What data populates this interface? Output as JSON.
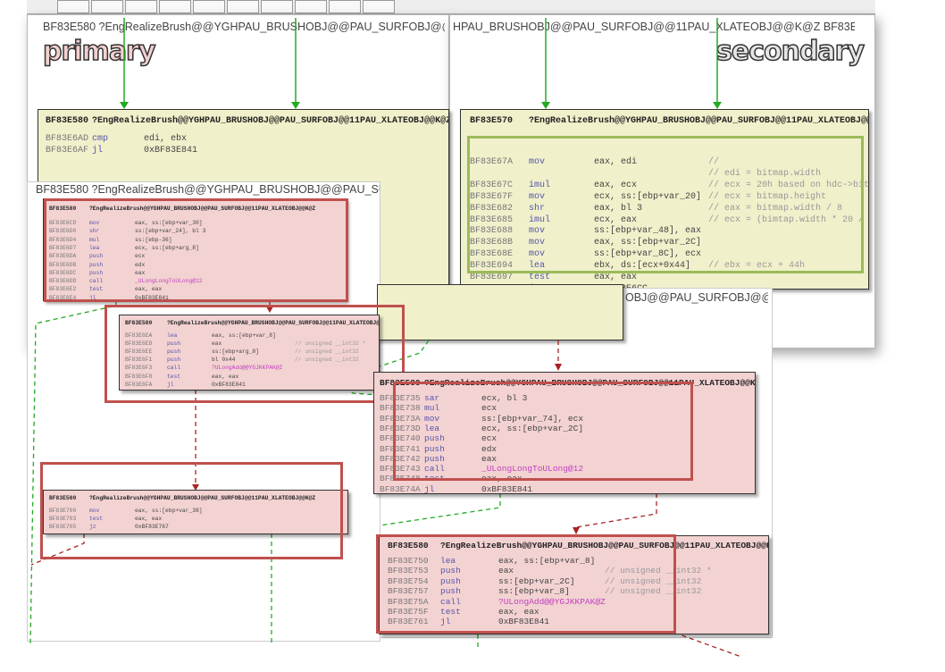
{
  "toolbar": {
    "buttons": 10
  },
  "primary_pane": {
    "header": "BF83E580   ?EngRealizeBrush@@YGHPAU_BRUSHOBJ@@PAU_SURFOBJ@@11PAU_XLATEOBJ@@K@Z",
    "label": "primary"
  },
  "secondary_pane": {
    "header": "HPAU_BRUSHOBJ@@PAU_SURFOBJ@@11PAU_XLATEOBJ@@K@Z   BF83E570",
    "label": "secondary"
  },
  "overlay_pane_header": "OBJ@@PAU_SURFOBJ@@11",
  "overlay_left_header": "BF83E580   ?EngRealizeBrush@@YGHPAU_BRUSHOBJ@@PAU_SURFOBJ@@11",
  "colors": {
    "node_yellow": "#f0f0cb",
    "node_pink": "#f3d2d2",
    "highlight_red": "#c0504d",
    "highlight_green": "#9bbb59",
    "edge_green": "#22aa22",
    "edge_red": "#aa2222"
  },
  "nodes": {
    "primary_entry": {
      "header": [
        "BF83E580",
        "?EngRealizeBrush@@YGHPAU_BRUSHOBJ@@PAU_SURFOBJ@@11PAU_XLATEOBJ@@K@Z"
      ],
      "lines": [
        [
          "BF83E6AD",
          "cmp",
          "edi, ebx",
          ""
        ],
        [
          "BF83E6AF",
          "jl",
          "0xBF83E841",
          ""
        ]
      ]
    },
    "secondary_entry": {
      "header": [
        "BF83E570",
        "?EngRealizeBrush@@YGHPAU_BRUSHOBJ@@PAU_SURFOBJ@@11PAU_XLATEOBJ@@K@Z"
      ],
      "lines": [
        [
          "BF83E67A",
          "mov",
          "eax, edi",
          "//"
        ],
        [
          "",
          "",
          "",
          "// edi = bitmap.width"
        ],
        [
          "BF83E67C",
          "imul",
          "eax, ecx",
          "// ecx = 20h based on hdc->bitmap"
        ],
        [
          "BF83E67F",
          "mov",
          "ecx, ss:[ebp+var_20]",
          "// ecx = bitmap.height"
        ],
        [
          "BF83E682",
          "shr",
          "eax, bl 3",
          "// eax = bitmap.width / 8"
        ],
        [
          "BF83E685",
          "imul",
          "ecx, eax",
          "// ecx = (bimtap.width * 20 / 8)"
        ],
        [
          "BF83E688",
          "mov",
          "ss:[ebp+var_48], eax",
          ""
        ],
        [
          "BF83E68B",
          "mov",
          "eax, ss:[ebp+var_2C]",
          ""
        ],
        [
          "BF83E68E",
          "mov",
          "ss:[ebp+var_8C], ecx",
          ""
        ],
        [
          "BF83E694",
          "lea",
          "ebx, ds:[ecx+0x44]",
          "// ebx = ecx + 44h"
        ],
        [
          "BF83E697",
          "test",
          "eax, eax",
          ""
        ],
        [
          "BF83E699",
          "jz",
          "0xBF83E6CC",
          ""
        ]
      ]
    },
    "node_a": {
      "header": [
        "BF83E580",
        "?EngRealizeBrush@@YGHPAU_BRUSHOBJ@@PAU_SURFOBJ@@11PAU_XLATEOBJ@@K@Z"
      ],
      "lines": [
        [
          "BF83E6CD",
          "mov",
          "eax, ss:[ebp+var_30]",
          ""
        ],
        [
          "BF83E6D0",
          "shr",
          "ss:[ebp+var_24], bl 3",
          ""
        ],
        [
          "BF83E6D4",
          "mul",
          "ss:[ebp-36]",
          ""
        ],
        [
          "BF83E6D7",
          "lea",
          "ecx, ss:[ebp+arg_8]",
          ""
        ],
        [
          "BF83E6DA",
          "push",
          "ecx",
          ""
        ],
        [
          "BF83E6DB",
          "push",
          "edx",
          ""
        ],
        [
          "BF83E6DC",
          "push",
          "eax",
          ""
        ],
        [
          "BF83E6DD",
          "call",
          "_ULongLongToULong@12",
          ""
        ],
        [
          "BF83E6E2",
          "test",
          "eax, eax",
          ""
        ],
        [
          "BF83E6E4",
          "jl",
          "0xBF83E841",
          ""
        ]
      ]
    },
    "node_b": {
      "header": [
        "BF83E580",
        "?EngRealizeBrush@@YGHPAU_BRUSHOBJ@@PAU_SURFOBJ@@11PAU_XLATEOBJ@@K@Z"
      ],
      "lines": [
        [
          "BF83E6EA",
          "lea",
          "eax, ss:[ebp+var_8]",
          ""
        ],
        [
          "BF83E6ED",
          "push",
          "eax",
          "// unsigned __int32 *"
        ],
        [
          "BF83E6EE",
          "push",
          "ss:[ebp+arg_8]",
          "// unsigned __int32"
        ],
        [
          "BF83E6F1",
          "push",
          "bl 0x44",
          "// unsigned __int32"
        ],
        [
          "BF83E6F3",
          "call",
          "?ULongAdd@@YGJKKPAK@Z",
          ""
        ],
        [
          "BF83E6F8",
          "test",
          "eax, eax",
          ""
        ],
        [
          "BF83E6FA",
          "jl",
          "0xBF83E841",
          ""
        ]
      ]
    },
    "node_c": {
      "header": [
        "BF83E580",
        "?EngRealizeBrush@@YGHPAU_BRUSHOBJ@@PAU_SURFOBJ@@11PAU_XLATEOBJ@@K@Z"
      ],
      "lines": [
        [
          "BF83E700",
          "mov",
          "eax, ss:[ebp+var_38]",
          ""
        ],
        [
          "BF83E703",
          "test",
          "eax, eax",
          ""
        ],
        [
          "BF83E705",
          "jz",
          "0xBF83E767",
          ""
        ]
      ]
    },
    "node_d": {
      "header": [
        "BF83E580",
        "?EngRealizeBrush@@YGHPAU_BRUSHOBJ@@PAU_SURFOBJ@@11PAU_XLATEOBJ@@K@Z"
      ],
      "lines": [
        [
          "BF83E735",
          "sar",
          "ecx, bl 3",
          ""
        ],
        [
          "BF83E738",
          "mul",
          "ecx",
          ""
        ],
        [
          "BF83E73A",
          "mov",
          "ss:[ebp+var_74], ecx",
          ""
        ],
        [
          "BF83E73D",
          "lea",
          "ecx, ss:[ebp+var_2C]",
          ""
        ],
        [
          "BF83E740",
          "push",
          "ecx",
          ""
        ],
        [
          "BF83E741",
          "push",
          "edx",
          ""
        ],
        [
          "BF83E742",
          "push",
          "eax",
          ""
        ],
        [
          "BF83E743",
          "call",
          "_ULongLongToULong@12",
          ""
        ],
        [
          "BF83E748",
          "test",
          "eax, eax",
          ""
        ],
        [
          "BF83E74A",
          "jl",
          "0xBF83E841",
          ""
        ]
      ]
    },
    "node_e": {
      "header": [
        "BF83E580",
        "?EngRealizeBrush@@YGHPAU_BRUSHOBJ@@PAU_SURFOBJ@@11PAU_XLATEOBJ@@K@Z"
      ],
      "lines": [
        [
          "BF83E750",
          "lea",
          "eax, ss:[ebp+var_8]",
          ""
        ],
        [
          "BF83E753",
          "push",
          "eax",
          "// unsigned __int32 *"
        ],
        [
          "BF83E754",
          "push",
          "ss:[ebp+var_2C]",
          "// unsigned __int32"
        ],
        [
          "BF83E757",
          "push",
          "ss:[ebp+var_8]",
          "// unsigned __int32"
        ],
        [
          "BF83E75A",
          "call",
          "?ULongAdd@@YGJKKPAK@Z",
          ""
        ],
        [
          "BF83E75F",
          "test",
          "eax, eax",
          ""
        ],
        [
          "BF83E761",
          "jl",
          "0xBF83E841",
          ""
        ]
      ]
    }
  }
}
